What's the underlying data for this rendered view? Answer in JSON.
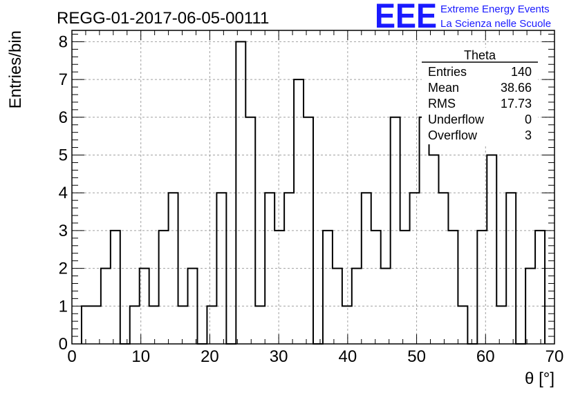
{
  "header": {
    "run_title": "REGG-01-2017-06-05-00111",
    "logo_text": "EEE",
    "org_line1": "Extreme Energy Events",
    "org_line2": "La Scienza nelle Scuole",
    "logo_color": "#1a1aff"
  },
  "stats_box": {
    "title": "Theta",
    "rows": [
      {
        "label": "Entries",
        "value": "140"
      },
      {
        "label": "Mean",
        "value": "38.66"
      },
      {
        "label": "RMS",
        "value": "17.73"
      },
      {
        "label": "Underflow",
        "value": "0"
      },
      {
        "label": "Overflow",
        "value": "3"
      }
    ]
  },
  "chart_data": {
    "type": "bar",
    "histogram": true,
    "xlabel": "θ [°]",
    "ylabel": "Entries/bin",
    "xlim": [
      0,
      70
    ],
    "ylim": [
      0,
      8.3
    ],
    "grid": true,
    "bin_width": 1.4,
    "bin_edges_start": 1.4,
    "x_ticks": [
      "0",
      "10",
      "20",
      "30",
      "40",
      "50",
      "60",
      "70"
    ],
    "y_ticks": [
      "0",
      "1",
      "2",
      "3",
      "4",
      "5",
      "6",
      "7",
      "8"
    ],
    "values": [
      1,
      1,
      2,
      3,
      0,
      1,
      2,
      1,
      3,
      4,
      1,
      2,
      0,
      1,
      4,
      0,
      8,
      6,
      1,
      4,
      3,
      4,
      7,
      6,
      0,
      3,
      2,
      1,
      2,
      4,
      3,
      2,
      6,
      3,
      4,
      6,
      5,
      4,
      3,
      1,
      0,
      3,
      5,
      1,
      4,
      0,
      2,
      3
    ]
  }
}
